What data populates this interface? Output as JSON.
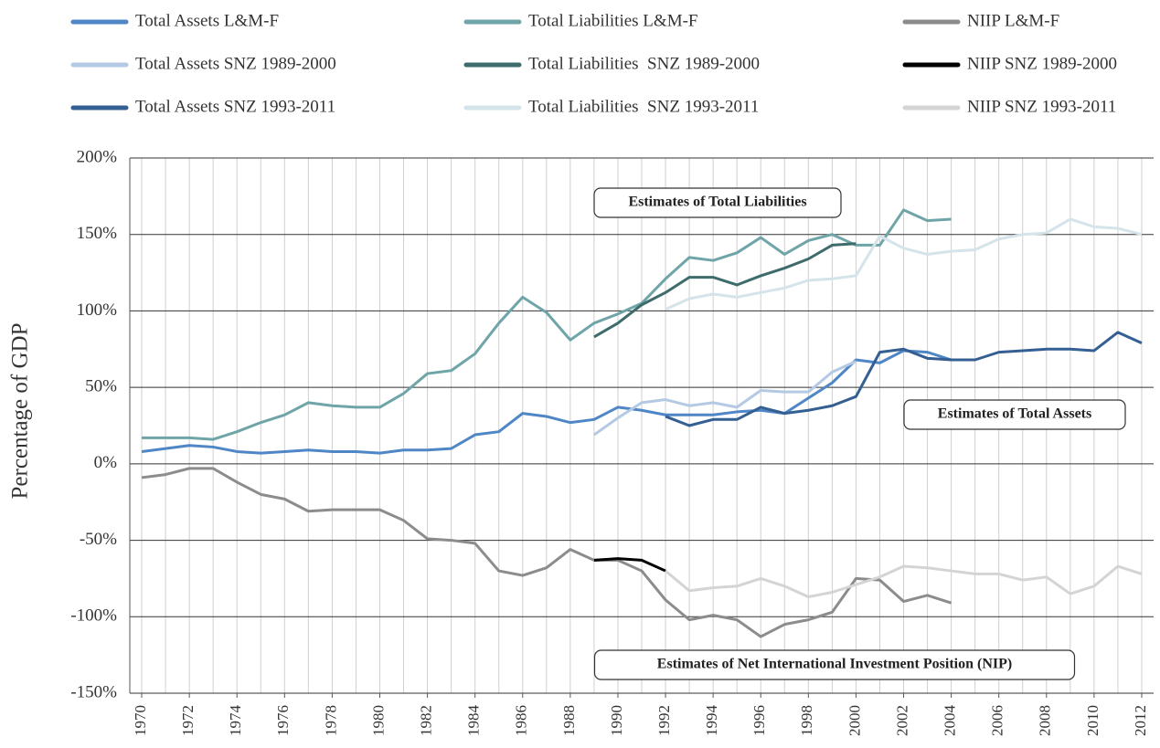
{
  "chart_data": {
    "type": "line",
    "y_label": "Percentage of GDP",
    "annotations": [
      "Estimates of Total Liabilities",
      "Estimates of Total Assets",
      "Estimates of Net International Investment Position (NIP)"
    ],
    "x": [
      1970,
      1971,
      1972,
      1973,
      1974,
      1975,
      1976,
      1977,
      1978,
      1979,
      1980,
      1981,
      1982,
      1983,
      1984,
      1985,
      1986,
      1987,
      1988,
      1989,
      1990,
      1991,
      1992,
      1993,
      1994,
      1995,
      1996,
      1997,
      1998,
      1999,
      2000,
      2001,
      2002,
      2003,
      2004,
      2005,
      2006,
      2007,
      2008,
      2009,
      2010,
      2011,
      2012
    ],
    "xlim": [
      1969.5,
      2012.5
    ],
    "xticks": [
      1970,
      1972,
      1974,
      1976,
      1978,
      1980,
      1982,
      1984,
      1986,
      1988,
      1990,
      1992,
      1994,
      1996,
      1998,
      2000,
      2002,
      2004,
      2006,
      2008,
      2010,
      2012
    ],
    "ylim": [
      -150,
      200
    ],
    "yticks": [
      {
        "value": -150,
        "label": "-150%"
      },
      {
        "value": -100,
        "label": "-100%"
      },
      {
        "value": -50,
        "label": "-50%"
      },
      {
        "value": 0,
        "label": "0%"
      },
      {
        "value": 50,
        "label": "50%"
      },
      {
        "value": 100,
        "label": "100%"
      },
      {
        "value": 150,
        "label": "150%"
      },
      {
        "value": 200,
        "label": "200%"
      }
    ],
    "grid": true,
    "series": [
      {
        "name": "Total Assets L&M-F",
        "color": "#4f86c6",
        "values": [
          8,
          10,
          12,
          11,
          8,
          7,
          8,
          9,
          8,
          8,
          7,
          9,
          9,
          10,
          19,
          21,
          33,
          31,
          27,
          29,
          37,
          35,
          32,
          32,
          32,
          34,
          35,
          33,
          43,
          53,
          68,
          66,
          74,
          73,
          68,
          null,
          null,
          null,
          null,
          null,
          null,
          null,
          null
        ]
      },
      {
        "name": "Total Assets SNZ 1989-2000",
        "color": "#b4c9e3",
        "values": [
          null,
          null,
          null,
          null,
          null,
          null,
          null,
          null,
          null,
          null,
          null,
          null,
          null,
          null,
          null,
          null,
          null,
          null,
          null,
          19,
          30,
          40,
          42,
          38,
          40,
          37,
          48,
          47,
          47,
          60,
          67,
          null,
          null,
          null,
          null,
          null,
          null,
          null,
          null,
          null,
          null,
          null,
          null
        ]
      },
      {
        "name": "Total Assets SNZ 1993-2011",
        "color": "#345f92",
        "values": [
          null,
          null,
          null,
          null,
          null,
          null,
          null,
          null,
          null,
          null,
          null,
          null,
          null,
          null,
          null,
          null,
          null,
          null,
          null,
          null,
          null,
          null,
          31,
          25,
          29,
          29,
          37,
          33,
          35,
          38,
          44,
          73,
          75,
          69,
          68,
          68,
          73,
          74,
          75,
          75,
          74,
          86,
          79
        ]
      },
      {
        "name": "Total Liabilities L&M-F",
        "color": "#6fa5a8",
        "values": [
          17,
          17,
          17,
          16,
          21,
          27,
          32,
          40,
          38,
          37,
          37,
          46,
          59,
          61,
          72,
          92,
          109,
          99,
          81,
          92,
          98,
          105,
          121,
          135,
          133,
          138,
          148,
          137,
          146,
          150,
          143,
          143,
          166,
          159,
          160,
          null,
          null,
          null,
          null,
          null,
          null,
          null,
          null
        ]
      },
      {
        "name": "Total Liabilities  SNZ 1989-2000",
        "color": "#3e6b6b",
        "values": [
          null,
          null,
          null,
          null,
          null,
          null,
          null,
          null,
          null,
          null,
          null,
          null,
          null,
          null,
          null,
          null,
          null,
          null,
          null,
          83,
          92,
          104,
          112,
          122,
          122,
          117,
          123,
          128,
          134,
          143,
          144,
          null,
          null,
          null,
          null,
          null,
          null,
          null,
          null,
          null,
          null,
          null,
          null
        ]
      },
      {
        "name": "Total Liabilities  SNZ 1993-2011",
        "color": "#d5e3ea",
        "values": [
          null,
          null,
          null,
          null,
          null,
          null,
          null,
          null,
          null,
          null,
          null,
          null,
          null,
          null,
          null,
          null,
          null,
          null,
          null,
          null,
          null,
          null,
          101,
          108,
          111,
          109,
          112,
          115,
          120,
          121,
          123,
          149,
          141,
          137,
          139,
          140,
          147,
          150,
          151,
          160,
          155,
          154,
          150
        ]
      },
      {
        "name": "NIIP L&M-F",
        "color": "#8c8c8c",
        "values": [
          -9,
          -7,
          -3,
          -3,
          -12,
          -20,
          -23,
          -31,
          -30,
          -30,
          -30,
          -37,
          -49,
          -50,
          -52,
          -70,
          -73,
          -68,
          -56,
          -63,
          -63,
          -70,
          -89,
          -102,
          -99,
          -102,
          -113,
          -105,
          -102,
          -97,
          -75,
          -76,
          -90,
          -86,
          -91,
          null,
          null,
          null,
          null,
          null,
          null,
          null,
          null
        ]
      },
      {
        "name": "NIIP SNZ 1989-2000",
        "color": "#000000",
        "values": [
          null,
          null,
          null,
          null,
          null,
          null,
          null,
          null,
          null,
          null,
          null,
          null,
          null,
          null,
          null,
          null,
          null,
          null,
          null,
          -63,
          -62,
          -63,
          -70,
          null,
          null,
          null,
          null,
          null,
          null,
          null,
          null,
          null,
          null,
          null,
          null,
          null,
          null,
          null,
          null,
          null,
          null,
          null,
          null
        ]
      },
      {
        "name": "NIIP SNZ 1993-2011",
        "color": "#d4d4d4",
        "values": [
          null,
          null,
          null,
          null,
          null,
          null,
          null,
          null,
          null,
          null,
          null,
          null,
          null,
          null,
          null,
          null,
          null,
          null,
          null,
          null,
          null,
          null,
          -70,
          -83,
          -81,
          -80,
          -75,
          -80,
          -87,
          -84,
          -79,
          -74,
          -67,
          -68,
          -70,
          -72,
          -72,
          -76,
          -74,
          -85,
          -80,
          -67,
          -72
        ]
      }
    ]
  }
}
